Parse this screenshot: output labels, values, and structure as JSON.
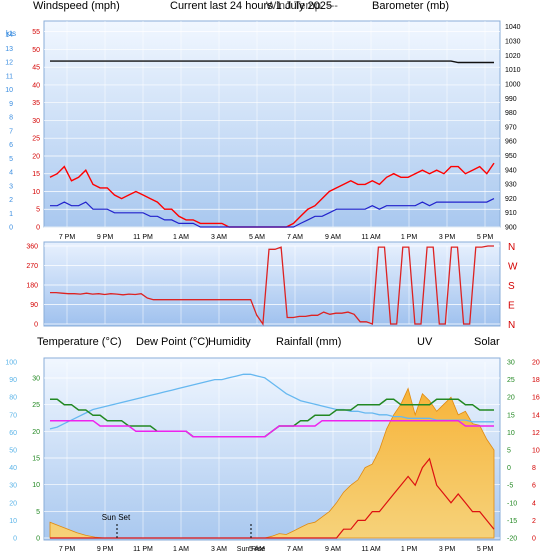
{
  "header": {
    "left_label": "Windspeed (mph)",
    "title": "Current last 24 hours 1 July 2025",
    "overlap_label": "Wind Temp. ---",
    "right_label": "Barometer (mb)"
  },
  "colors": {
    "bg_panel_top": "#eaf3ff",
    "bg_panel_bottom": "#a9c8ef",
    "wind_gust": "#ff0000",
    "wind_avg": "#2222cc",
    "baro": "#111111",
    "temp": "#228822",
    "dew": "#ee22ee",
    "hum": "#66b8f0",
    "uv": "#dd1111",
    "solar_fill": "#f2a623",
    "rain": "#1f8f8f"
  },
  "chart_data": [
    {
      "type": "line",
      "panel": "wind-baro",
      "x_labels": [
        "7 PM",
        "9 PM",
        "11 PM",
        "1 AM",
        "3 AM",
        "5 AM",
        "7 AM",
        "9 AM",
        "11 AM",
        "1 PM",
        "3 PM",
        "5 PM"
      ],
      "y_left_ticks": [
        "0",
        "5",
        "10",
        "15",
        "20",
        "25",
        "30",
        "35",
        "40",
        "45",
        "50",
        "55"
      ],
      "y_left_ticks_kts": [
        "0",
        "1",
        "2",
        "3",
        "4",
        "5",
        "6",
        "7",
        "8",
        "9",
        "10",
        "11",
        "12",
        "13",
        "14"
      ],
      "y_left_kts_label": "kts",
      "y_right_ticks": [
        "900",
        "910",
        "920",
        "930",
        "940",
        "950",
        "960",
        "970",
        "980",
        "990",
        "1000",
        "1010",
        "1020",
        "1030",
        "1040"
      ],
      "ylim_left": [
        0,
        58
      ],
      "ylim_right": [
        900,
        1044
      ],
      "series": [
        {
          "name": "Windspeed (mph)",
          "kind": "gust",
          "values": [
            14,
            15,
            17,
            13,
            14,
            16,
            12,
            11,
            11,
            9,
            8,
            9,
            10,
            9,
            8,
            7,
            5,
            5,
            3,
            2,
            2,
            1,
            1,
            1,
            1,
            0,
            0,
            0,
            0,
            0,
            0,
            0,
            0,
            0,
            1,
            3,
            5,
            6,
            8,
            10,
            11,
            12,
            13,
            12,
            12,
            13,
            12,
            14,
            15,
            14,
            14,
            15,
            16,
            15,
            16,
            15,
            17,
            17,
            15,
            16,
            17,
            15,
            18
          ]
        },
        {
          "name": "Wind Avg",
          "kind": "avg",
          "values": [
            6,
            6,
            7,
            6,
            6,
            7,
            5,
            5,
            5,
            4,
            4,
            4,
            4,
            4,
            3,
            3,
            2,
            2,
            1,
            1,
            1,
            0,
            0,
            0,
            0,
            0,
            0,
            0,
            0,
            0,
            0,
            0,
            0,
            0,
            0,
            1,
            2,
            3,
            3,
            4,
            5,
            5,
            5,
            5,
            5,
            6,
            5,
            6,
            6,
            6,
            6,
            6,
            7,
            6,
            7,
            7,
            7,
            7,
            7,
            7,
            7,
            7,
            8
          ]
        },
        {
          "name": "Barometer (mb)",
          "kind": "baro",
          "values": [
            1016,
            1016,
            1016,
            1016,
            1016,
            1016,
            1016,
            1016,
            1016,
            1016,
            1016,
            1016,
            1016,
            1016,
            1016,
            1016,
            1016,
            1016,
            1016,
            1016,
            1016,
            1016,
            1016,
            1016,
            1016,
            1016,
            1016,
            1016,
            1016,
            1016,
            1016,
            1016,
            1016,
            1016,
            1016,
            1016,
            1016,
            1016,
            1016,
            1016,
            1016,
            1016,
            1016,
            1016,
            1016,
            1016,
            1016,
            1016,
            1016,
            1016,
            1016,
            1016,
            1016,
            1016,
            1016,
            1016,
            1016,
            1015,
            1015,
            1015,
            1015,
            1015,
            1015
          ]
        }
      ]
    },
    {
      "type": "line",
      "panel": "wind-direction",
      "x_labels": [],
      "y_left_ticks": [
        "0",
        "90",
        "180",
        "270",
        "360"
      ],
      "y_right_ticks": [
        "N",
        "E",
        "S",
        "W",
        "N"
      ],
      "ylim": [
        0,
        360
      ],
      "values": [
        145,
        145,
        142,
        140,
        140,
        138,
        142,
        138,
        140,
        136,
        140,
        138,
        135,
        138,
        136,
        140,
        120,
        112,
        112,
        112,
        112,
        112,
        112,
        112,
        112,
        112,
        112,
        112,
        112,
        112,
        112,
        112,
        112,
        112,
        40,
        0,
        345,
        345,
        355,
        30,
        30,
        35,
        35,
        40,
        40,
        55,
        45,
        50,
        50,
        55,
        45,
        10,
        10,
        0,
        355,
        355,
        0,
        0,
        355,
        355,
        0,
        0,
        355,
        355,
        0,
        0,
        355,
        355,
        0,
        0,
        355,
        355,
        360,
        360
      ]
    },
    {
      "type": "line",
      "panel": "temp-solar",
      "x_labels": [
        "7 PM",
        "9 PM",
        "11 PM",
        "1 AM",
        "3 AM",
        "5 AM",
        "7 AM",
        "9 AM",
        "11 AM",
        "1 PM",
        "3 PM",
        "5 PM"
      ],
      "header_labels": {
        "temperature": "Temperature (°C)",
        "dew": "Dew Point (°C)",
        "hum": "Humidity",
        "rain": "Rainfall (mm)",
        "uv": "UV",
        "solar": "Solar"
      },
      "y_left_ticks_hum": [
        "0",
        "10",
        "20",
        "30",
        "40",
        "50",
        "60",
        "70",
        "80",
        "90",
        "100"
      ],
      "y_left_ticks_temp": [
        "0",
        "5",
        "10",
        "15",
        "20",
        "25",
        "30"
      ],
      "y_right_ticks_uv": [
        "0",
        "2",
        "4",
        "6",
        "8",
        "10",
        "12",
        "14",
        "16",
        "18",
        "20"
      ],
      "y_right_ticks_temp": [
        "-20",
        "-15",
        "-10",
        "-5",
        "0",
        "5",
        "10",
        "15",
        "20",
        "25",
        "30"
      ],
      "annotations": [
        "Sun Set",
        "Sun Rise"
      ],
      "series": [
        {
          "name": "Temperature (°C)",
          "values": [
            26,
            26,
            25,
            25,
            24,
            24,
            23,
            23,
            22,
            22,
            22,
            21,
            21,
            21,
            21,
            20,
            20,
            20,
            20,
            20,
            19,
            19,
            19,
            19,
            19,
            19,
            19,
            19,
            19,
            19,
            19,
            20,
            21,
            21,
            21,
            22,
            22,
            23,
            23,
            23,
            24,
            24,
            24,
            25,
            25,
            25,
            25,
            26,
            26,
            25,
            25,
            25,
            25,
            25,
            26,
            26,
            26,
            26,
            25,
            25,
            24,
            24,
            24
          ]
        },
        {
          "name": "Dew Point (°C)",
          "values": [
            22,
            22,
            22,
            22,
            22,
            22,
            22,
            21,
            21,
            21,
            21,
            21,
            20,
            20,
            20,
            20,
            20,
            20,
            20,
            20,
            19,
            19,
            19,
            19,
            19,
            19,
            19,
            19,
            19,
            19,
            19,
            20,
            21,
            21,
            21,
            21,
            21,
            21,
            22,
            22,
            22,
            22,
            22,
            22,
            22,
            22,
            22,
            22,
            22,
            22,
            22,
            22,
            22,
            22,
            22,
            22,
            22,
            22,
            21,
            21,
            21,
            21,
            21
          ]
        },
        {
          "name": "Humidity",
          "values": [
            62,
            63,
            65,
            67,
            69,
            71,
            73,
            74,
            75,
            76,
            77,
            78,
            79,
            80,
            81,
            82,
            83,
            84,
            85,
            86,
            87,
            88,
            89,
            90,
            90,
            91,
            92,
            93,
            93,
            92,
            91,
            88,
            85,
            82,
            80,
            78,
            77,
            76,
            75,
            74,
            73,
            73,
            72,
            72,
            71,
            71,
            70,
            70,
            69,
            69,
            68,
            68,
            68,
            68,
            67,
            67,
            67,
            67,
            67,
            66,
            66,
            66,
            66
          ]
        },
        {
          "name": "UV",
          "values": [
            0,
            0,
            0,
            0,
            0,
            0,
            0,
            0,
            0,
            0,
            0,
            0,
            0,
            0,
            0,
            0,
            0,
            0,
            0,
            0,
            0,
            0,
            0,
            0,
            0,
            0,
            0,
            0,
            0,
            0,
            0,
            0,
            0,
            0,
            0,
            0,
            0,
            0,
            0,
            0,
            0,
            1,
            1,
            2,
            2,
            3,
            3,
            4,
            5,
            6,
            7,
            6,
            8,
            9,
            6,
            5,
            4,
            5,
            4,
            3,
            3,
            2,
            1
          ]
        },
        {
          "name": "Solar",
          "values": [
            0,
            0,
            0,
            0,
            0,
            0,
            0,
            0,
            0,
            0,
            0,
            0,
            0,
            0,
            0,
            0,
            0,
            0,
            0,
            0,
            0,
            0,
            0,
            0,
            0,
            0,
            0,
            0,
            0,
            0,
            0,
            10,
            25,
            20,
            40,
            60,
            80,
            90,
            120,
            150,
            200,
            260,
            300,
            330,
            400,
            420,
            500,
            620,
            700,
            760,
            850,
            700,
            820,
            780,
            720,
            760,
            800,
            700,
            720,
            650,
            640,
            560,
            500
          ]
        }
      ]
    }
  ]
}
